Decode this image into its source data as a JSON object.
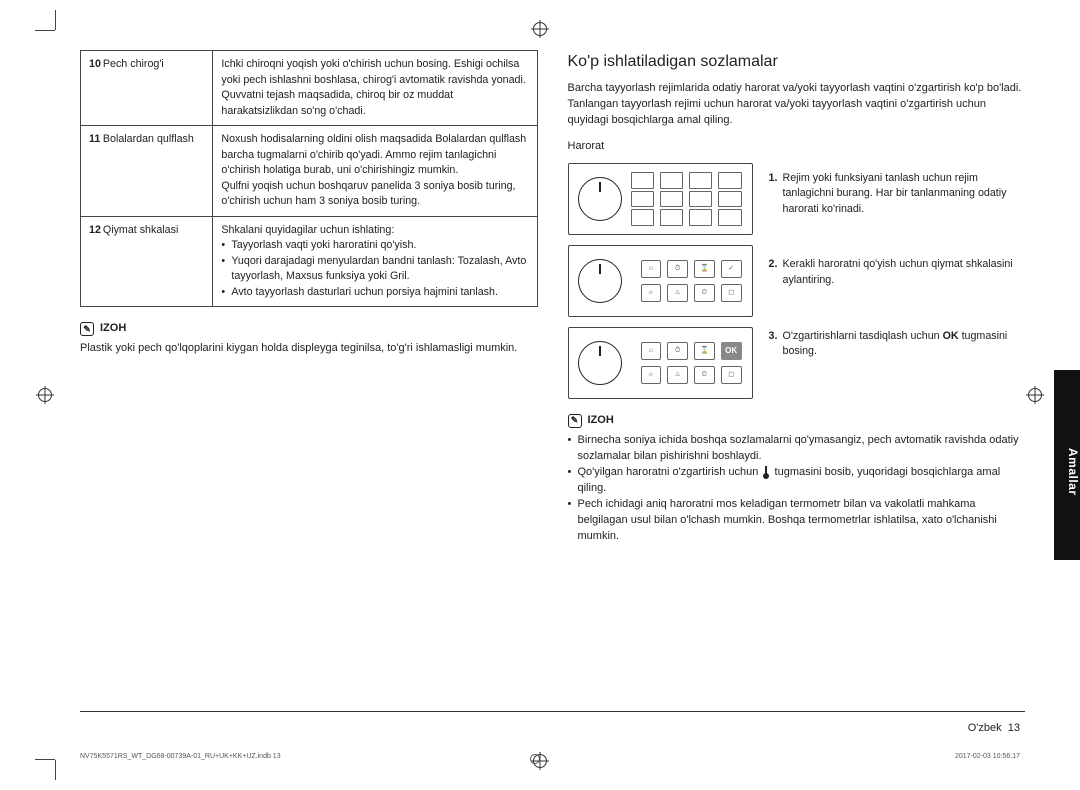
{
  "table": {
    "rows": [
      {
        "num": "10",
        "name": "Pech chirog'i",
        "desc": "Ichki chiroqni yoqish yoki o'chirish uchun bosing. Eshigi ochilsa yoki pech ishlashni boshlasa, chirog'i avtomatik ravishda yonadi. Quvvatni tejash maqsadida, chiroq bir oz muddat harakatsizlikdan so'ng o'chadi."
      },
      {
        "num": "11",
        "name": "Bolalardan qulflash",
        "desc": "Noxush hodisalarning oldini olish maqsadida Bolalardan qulflash barcha tugmalarni o'chirib qo'yadi. Ammo rejim tanlagichni o'chirish holatiga burab, uni o'chirishingiz mumkin.\nQulfni yoqish uchun boshqaruv panelida 3 soniya bosib turing, o'chirish uchun ham 3 soniya bosib turing."
      },
      {
        "num": "12",
        "name": "Qiymat shkalasi",
        "desc": "Shkalani quyidagilar uchun ishlating:",
        "bullets": [
          "Tayyorlash vaqti yoki haroratini qo'yish.",
          "Yuqori darajadagi menyulardan bandni tanlash: Tozalash, Avto tayyorlash, Maxsus funksiya yoki Gril.",
          "Avto tayyorlash dasturlari uchun porsiya hajmini tanlash."
        ]
      }
    ]
  },
  "left_izoh": {
    "head": "IZOH",
    "body": "Plastik yoki pech qo'lqoplarini kiygan holda displeyga teginilsa, to'g'ri ishlamasligi mumkin."
  },
  "right": {
    "title": "Ko'p ishlatiladigan sozlamalar",
    "intro": "Barcha tayyorlash rejimlarida odatiy harorat va/yoki tayyorlash vaqtini o'zgartirish ko'p bo'ladi. Tanlangan tayyorlash rejimi uchun harorat va/yoki tayyorlash vaqtini o'zgartirish uchun quyidagi bosqichlarga amal qiling.",
    "sub": "Harorat",
    "steps": [
      "Rejim yoki funksiyani tanlash uchun rejim tanlagichni burang. Har bir tanlanmaning odatiy harorati ko'rinadi.",
      "Kerakli haroratni qo'yish uchun qiymat shkalasini aylantiring.",
      "O'zgartirishlarni tasdiqlash uchun OK tugmasini bosing."
    ],
    "ok": "OK",
    "izoh_head": "IZOH",
    "izoh_items": [
      "Birnecha soniya ichida boshqa sozlamalarni qo'ymasangiz, pech avtomatik ravishda odatiy sozlamalar bilan pishirishni boshlaydi.",
      "Qo'yilgan haroratni o'zgartirish uchun  ␡  tugmasini bosib, yuqoridagi bosqichlarga amal qiling.",
      "Pech ichidagi aniq haroratni mos keladigan termometr bilan va vakolatli mahkama belgilagan usul bilan o'lchash mumkin. Boshqa termometrlar ishlatilsa, xato o'lchanishi mumkin."
    ],
    "izoh_item2_pre": "Qo'yilgan haroratni o'zgartirish uchun ",
    "izoh_item2_post": " tugmasini bosib, yuqoridagi bosqichlarga amal qiling."
  },
  "sidetab": "Amallar",
  "pagelabel": "O'zbek",
  "pagenum": "13",
  "footfile": "NV75K5571RS_WT_DG68-00739A-01_RU+UK+KK+UZ.indb   13",
  "footdate": "2017-02-03   10:56:17"
}
